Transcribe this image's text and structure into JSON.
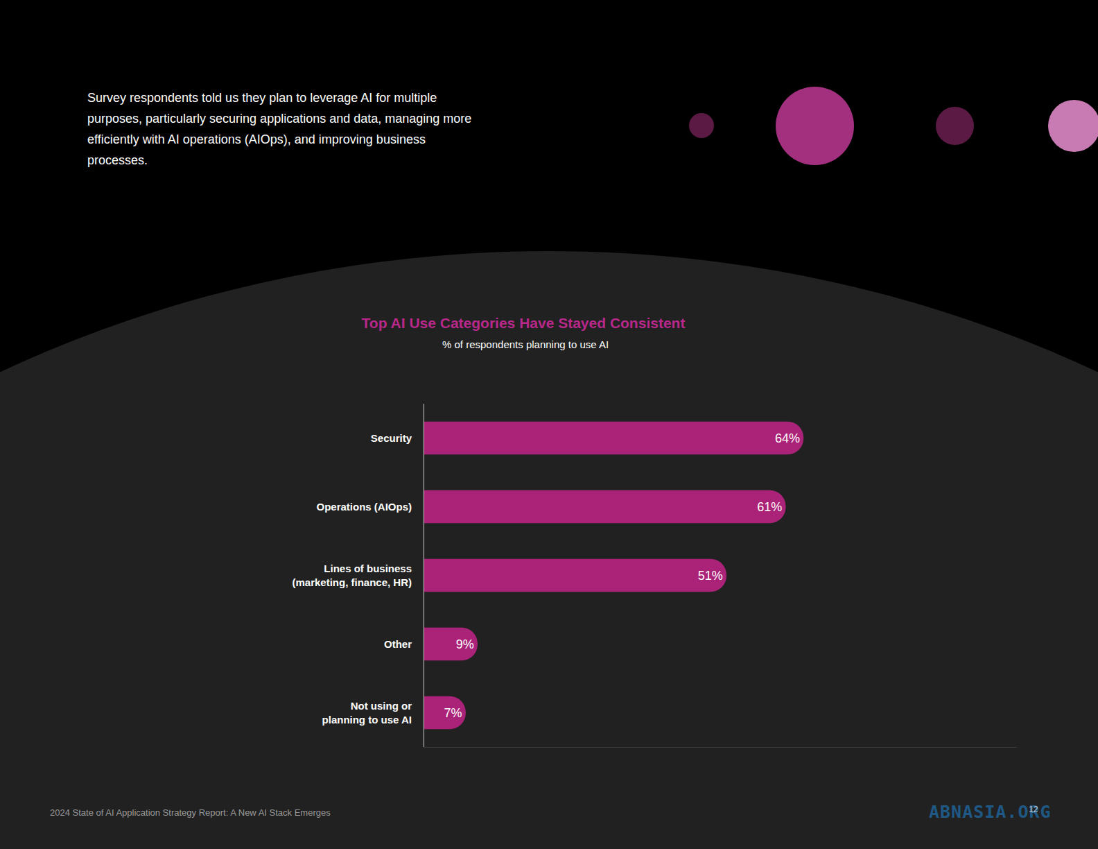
{
  "intro": "Survey respondents told us they plan to leverage AI for multiple purposes, particularly securing applications and data, managing more efficiently with AI operations (AIOps), and improving business processes.",
  "footer": "2024 State of AI Application Strategy Report: A New AI Stack Emerges",
  "page_number": "12",
  "watermark": "ABNASIA.ORG",
  "chart_data": {
    "type": "bar",
    "title": "Top AI Use Categories Have Stayed Consistent",
    "subtitle": "% of respondents planning to use AI",
    "orientation": "horizontal",
    "categories": [
      "Security",
      "Operations (AIOps)",
      "Lines of business\n(marketing, finance, HR)",
      "Other",
      "Not using or\nplanning to use AI"
    ],
    "values": [
      64,
      61,
      51,
      9,
      7
    ],
    "value_labels": [
      "64%",
      "61%",
      "51%",
      "9%",
      "7%"
    ],
    "data_labels": true,
    "color": "#ab2379",
    "xlim": [
      0,
      100
    ],
    "tick_labels": "y",
    "grid": false
  }
}
